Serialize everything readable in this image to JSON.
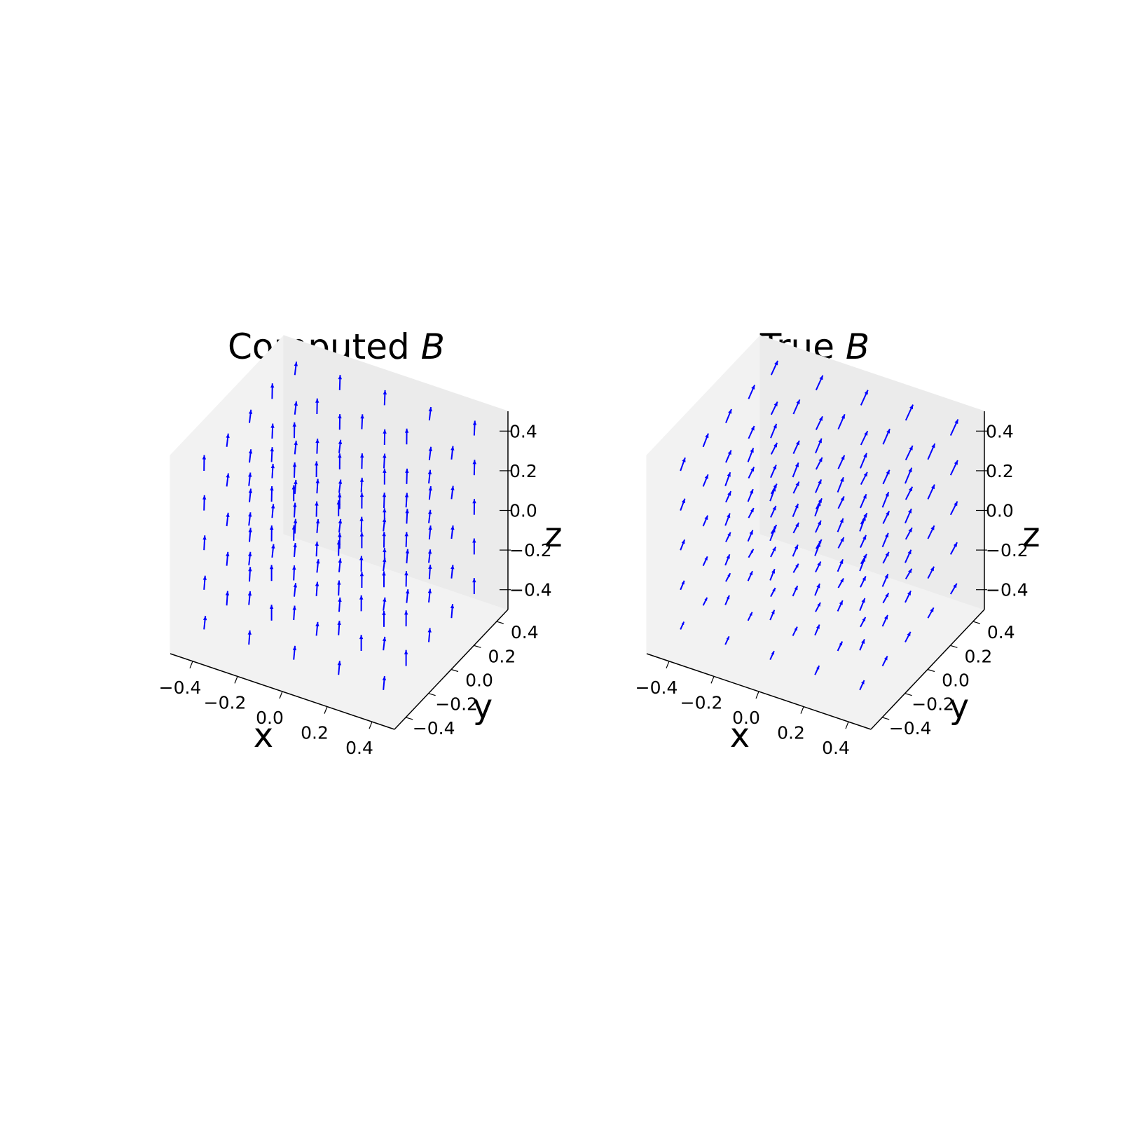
{
  "chart_data": [
    {
      "type": "quiver3d",
      "title_text": "Computed ",
      "title_symbol": "B",
      "xlabel": "x",
      "ylabel": "y",
      "zlabel": "z",
      "xlim": [
        -0.5,
        0.5
      ],
      "ylim": [
        -0.5,
        0.5
      ],
      "zlim": [
        -0.5,
        0.5
      ],
      "xticks": [
        "−0.4",
        "−0.2",
        "0.0",
        "0.2",
        "0.4"
      ],
      "yticks": [
        "−0.4",
        "−0.2",
        "0.0",
        "0.2",
        "0.4"
      ],
      "zticks": [
        "−0.4",
        "−0.2",
        "0.0",
        "0.2",
        "0.4"
      ],
      "grid": [
        -0.4,
        -0.2,
        0.0,
        0.2,
        0.4
      ],
      "field": "nearly uniform field pointing in +z with slight tilt",
      "vector": {
        "u": 0.004,
        "v": -0.004,
        "w": 0.045
      },
      "arrow_color": "#0000ff"
    },
    {
      "type": "quiver3d",
      "title_text": "True ",
      "title_symbol": "B",
      "xlabel": "x",
      "ylabel": "y",
      "zlabel": "z",
      "xlim": [
        -0.5,
        0.5
      ],
      "ylim": [
        -0.5,
        0.5
      ],
      "zlim": [
        -0.5,
        0.5
      ],
      "xticks": [
        "−0.4",
        "−0.2",
        "0.0",
        "0.2",
        "0.4"
      ],
      "yticks": [
        "−0.4",
        "−0.2",
        "0.0",
        "0.2",
        "0.4"
      ],
      "zticks": [
        "−0.4",
        "−0.2",
        "0.0",
        "0.2",
        "0.4"
      ],
      "grid": [
        -0.4,
        -0.2,
        0.0,
        0.2,
        0.4
      ],
      "field": "mostly +y directed field, stronger toward +y and +z",
      "vector": {
        "u": -0.006,
        "v": 0.045,
        "w": 0.012
      },
      "arrow_color": "#0000ff"
    }
  ]
}
